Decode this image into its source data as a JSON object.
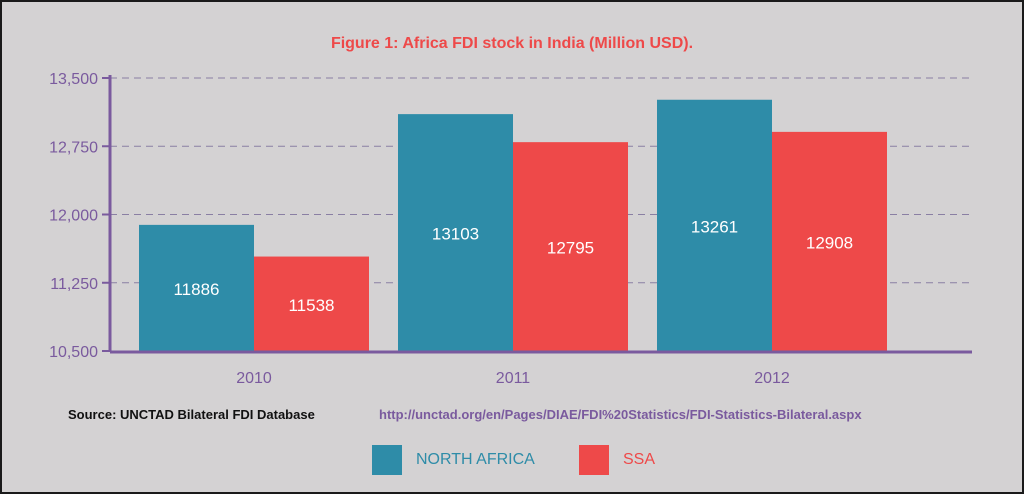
{
  "colors": {
    "background": "#d4d2d3",
    "title": "#ee4949",
    "axis": "#7a5a9e",
    "north_africa": "#2e8ca8",
    "ssa": "#ee4949",
    "url": "#7a5a9e"
  },
  "source": {
    "label": "Source: UNCTAD Bilateral FDI Database",
    "url": "http://unctad.org/en/Pages/DIAE/FDI%20Statistics/FDI-Statistics-Bilateral.aspx"
  },
  "chart_data": {
    "type": "bar",
    "title": "Figure 1: Africa FDI stock in India (Million USD).",
    "xlabel": "",
    "ylabel": "",
    "categories": [
      "2010",
      "2011",
      "2012"
    ],
    "series": [
      {
        "name": "NORTH AFRICA",
        "values": [
          11886,
          13103,
          13261
        ],
        "color": "#2e8ca8"
      },
      {
        "name": "SSA",
        "values": [
          11538,
          12795,
          12908
        ],
        "color": "#ee4949"
      }
    ],
    "ylim": [
      10500,
      13500
    ],
    "yticks": [
      10500,
      11250,
      12000,
      12750,
      13500
    ],
    "ytick_labels": [
      "10,500",
      "11,250",
      "12,000",
      "12,750",
      "13,500"
    ],
    "grid": true,
    "data_labels": true,
    "legend": "bottom"
  }
}
